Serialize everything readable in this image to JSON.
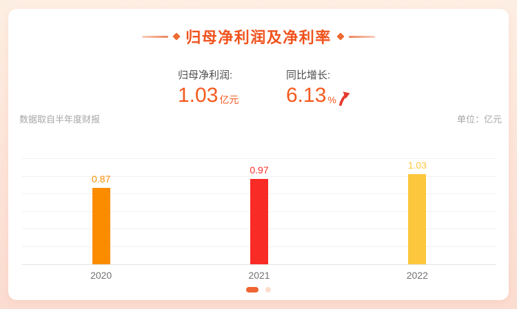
{
  "theme": {
    "accent": "#f0511b",
    "value_orange": "#f4591d",
    "arrow_red": "#e63a2e",
    "dot_active": "#ef6432",
    "dot_inactive": "#fbddcb"
  },
  "header": {
    "title": "归母净利润及净利率"
  },
  "stats": [
    {
      "label": "归母净利润:",
      "value": "1.03",
      "unit": "亿元"
    },
    {
      "label": "同比增长:",
      "value": "6.13",
      "unit": "%",
      "trend": "up"
    }
  ],
  "meta": {
    "source_note": "数据取自半年度财报",
    "unit_note": "单位：亿元"
  },
  "chart_data": {
    "type": "bar",
    "title": "归母净利润及净利率",
    "categories": [
      "2020",
      "2021",
      "2022"
    ],
    "values": [
      0.87,
      0.97,
      1.03
    ],
    "bar_colors": [
      "#fb8c00",
      "#f92b26",
      "#fcc73c"
    ],
    "value_labels": [
      "0.87",
      "0.97",
      "1.03"
    ],
    "xlabel": "",
    "ylabel": "亿元",
    "ylim": [
      0,
      1.2
    ],
    "grid_step": 0.2,
    "grid": true,
    "legend": false
  },
  "pagination": {
    "dots": [
      {
        "state": "active"
      },
      {
        "state": "inactive"
      }
    ]
  }
}
